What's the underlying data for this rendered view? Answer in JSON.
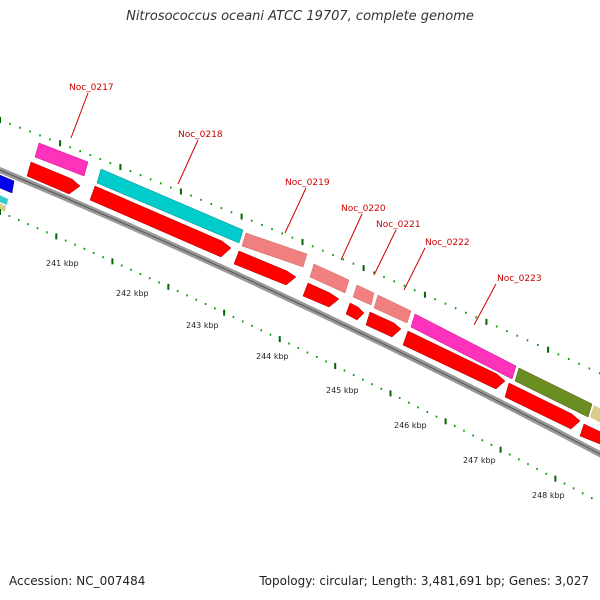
{
  "title": "Nitrosococcus oceani ATCC 19707, complete genome",
  "footer": {
    "accession": "Accession: NC_007484",
    "summary": "Topology: circular; Length: 3,481,691 bp; Genes: 3,027"
  },
  "colors": {
    "backbone": "#999999",
    "cds_forward": "#ff0000",
    "tick_major": "#006600",
    "tick_minor": "#009900",
    "gene_label": "#cc0000"
  },
  "gene_labels": [
    {
      "name": "Noc_0217"
    },
    {
      "name": "Noc_0218"
    },
    {
      "name": "Noc_0219"
    },
    {
      "name": "Noc_0220"
    },
    {
      "name": "Noc_0221"
    },
    {
      "name": "Noc_0222"
    },
    {
      "name": "Noc_0223"
    }
  ],
  "feature_colors": [
    "#ff33bb",
    "#00cccc",
    "#f08080",
    "#f08080",
    "#f08080",
    "#ff33bb",
    "#6b8e23"
  ],
  "kbp_labels": [
    "241 kbp",
    "242 kbp",
    "243 kbp",
    "244 kbp",
    "245 kbp",
    "246 kbp",
    "247 kbp",
    "248 kbp"
  ]
}
